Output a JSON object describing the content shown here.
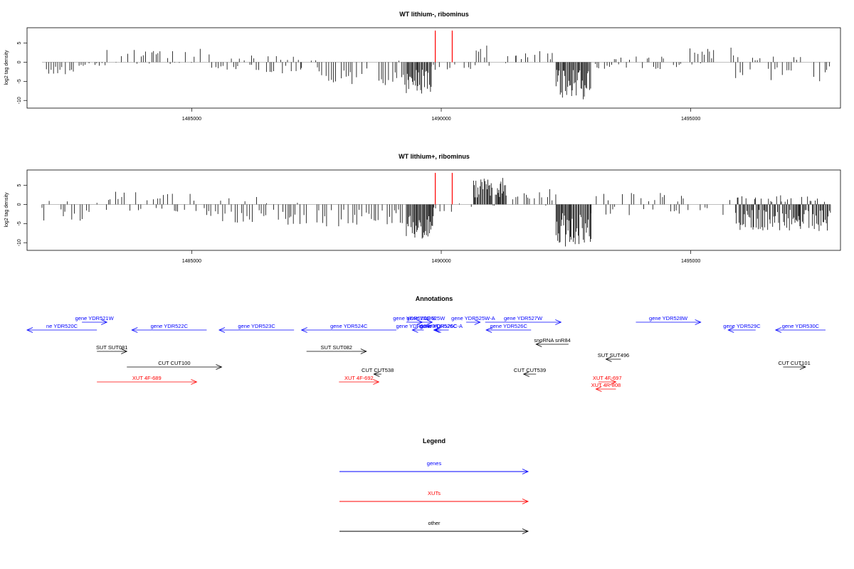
{
  "chart_data": [
    {
      "type": "bar",
      "title": "WT lithium-, ribominus",
      "ylabel": "log2 tag density",
      "xlim": [
        1481700,
        1498000
      ],
      "ylim": [
        -12,
        9
      ],
      "x_ticks": [
        1485000,
        1490000,
        1495000
      ],
      "y_ticks": [
        5,
        0,
        -5,
        -10
      ],
      "markers": [
        1489880,
        1490220
      ],
      "marker_color": "#ff0000",
      "profile": [
        {
          "from": 1482000,
          "to": 1482700,
          "lo": -4,
          "hi": 0
        },
        {
          "from": 1482700,
          "to": 1483300,
          "lo": -1,
          "hi": 0
        },
        {
          "from": 1483300,
          "to": 1485400,
          "lo": -0.5,
          "hi": 3.5
        },
        {
          "from": 1485400,
          "to": 1486200,
          "lo": -2,
          "hi": 1
        },
        {
          "from": 1486200,
          "to": 1487200,
          "lo": -3,
          "hi": 2
        },
        {
          "from": 1487200,
          "to": 1489300,
          "lo": -6,
          "hi": 0.5
        },
        {
          "from": 1489300,
          "to": 1489800,
          "lo": -8.5,
          "hi": 0
        },
        {
          "from": 1489800,
          "to": 1490700,
          "lo": -2,
          "hi": 0
        },
        {
          "from": 1490700,
          "to": 1491500,
          "lo": -1,
          "hi": 4.5
        },
        {
          "from": 1491500,
          "to": 1492300,
          "lo": -1,
          "hi": 3
        },
        {
          "from": 1492300,
          "to": 1493000,
          "lo": -10,
          "hi": 0
        },
        {
          "from": 1493000,
          "to": 1494800,
          "lo": -2,
          "hi": 1.5
        },
        {
          "from": 1494800,
          "to": 1495900,
          "lo": -1,
          "hi": 4
        },
        {
          "from": 1495900,
          "to": 1497800,
          "lo": -5,
          "hi": 1.5
        }
      ]
    },
    {
      "type": "bar",
      "title": "WT lithium+, ribominus",
      "ylabel": "log2 tag density",
      "xlim": [
        1481700,
        1498000
      ],
      "ylim": [
        -12,
        9
      ],
      "x_ticks": [
        1485000,
        1490000,
        1495000
      ],
      "y_ticks": [
        5,
        0,
        -5,
        -10
      ],
      "markers": [
        1489880,
        1490220
      ],
      "marker_color": "#ff0000",
      "profile": [
        {
          "from": 1482000,
          "to": 1482900,
          "lo": -4.5,
          "hi": 1
        },
        {
          "from": 1482900,
          "to": 1483300,
          "lo": -2,
          "hi": 0.5
        },
        {
          "from": 1483300,
          "to": 1485300,
          "lo": -2,
          "hi": 3.5
        },
        {
          "from": 1485300,
          "to": 1486500,
          "lo": -5,
          "hi": 2
        },
        {
          "from": 1486500,
          "to": 1489300,
          "lo": -6,
          "hi": 0.5
        },
        {
          "from": 1489300,
          "to": 1489850,
          "lo": -9.5,
          "hi": 0
        },
        {
          "from": 1489850,
          "to": 1490650,
          "lo": -2,
          "hi": 0.5
        },
        {
          "from": 1490650,
          "to": 1491300,
          "lo": -0.5,
          "hi": 7
        },
        {
          "from": 1491300,
          "to": 1492300,
          "lo": -0.5,
          "hi": 4
        },
        {
          "from": 1492300,
          "to": 1493000,
          "lo": -11,
          "hi": 0
        },
        {
          "from": 1493000,
          "to": 1495900,
          "lo": -3,
          "hi": 3
        },
        {
          "from": 1495900,
          "to": 1497800,
          "lo": -7,
          "hi": 2.5
        }
      ]
    }
  ],
  "annotations": {
    "title": "Annotations",
    "xlim": [
      1481700,
      1498000
    ],
    "features": [
      {
        "label": "ne YDR520C",
        "kind": "gene",
        "start": 1481700,
        "end": 1483100,
        "strand": "-",
        "level": 1
      },
      {
        "label": "gene YDR521W",
        "kind": "gene",
        "start": 1482800,
        "end": 1483300,
        "strand": "+",
        "level": 0
      },
      {
        "label": "gene YDR522C",
        "kind": "gene",
        "start": 1483800,
        "end": 1485300,
        "strand": "-",
        "level": 1
      },
      {
        "label": "gene YDR523C",
        "kind": "gene",
        "start": 1485550,
        "end": 1487050,
        "strand": "-",
        "level": 1
      },
      {
        "label": "gene YDR524C",
        "kind": "gene",
        "start": 1487200,
        "end": 1489100,
        "strand": "-",
        "level": 1
      },
      {
        "label": "gene YDR524C-B",
        "kind": "gene",
        "start": 1489300,
        "end": 1489620,
        "strand": "+",
        "level": 0
      },
      {
        "label": "gene YDR525W",
        "kind": "gene",
        "start": 1489560,
        "end": 1489820,
        "strand": "+",
        "level": 0
      },
      {
        "label": "gene YDR525W-A",
        "kind": "gene",
        "start": 1490500,
        "end": 1490780,
        "strand": "+",
        "level": 0
      },
      {
        "label": "gene YDR524W-C",
        "kind": "gene",
        "start": 1489420,
        "end": 1489650,
        "strand": "-",
        "level": 1
      },
      {
        "label": "gene YDR526C",
        "kind": "gene",
        "start": 1489880,
        "end": 1490000,
        "strand": "-",
        "level": 1
      },
      {
        "label": "gene YDR526C-A",
        "kind": "gene",
        "start": 1489850,
        "end": 1490150,
        "strand": "-",
        "level": 1
      },
      {
        "label": "gene YDR527W",
        "kind": "gene",
        "start": 1490880,
        "end": 1492400,
        "strand": "+",
        "level": 0
      },
      {
        "label": "gene YDR526C",
        "kind": "gene",
        "start": 1490900,
        "end": 1491800,
        "strand": "-",
        "level": 1
      },
      {
        "label": "gene YDR528W",
        "kind": "gene",
        "start": 1493900,
        "end": 1495200,
        "strand": "+",
        "level": 0
      },
      {
        "label": "gene YDR529C",
        "kind": "gene",
        "start": 1495750,
        "end": 1496300,
        "strand": "-",
        "level": 1
      },
      {
        "label": "gene YDR530C",
        "kind": "gene",
        "start": 1496700,
        "end": 1497700,
        "strand": "-",
        "level": 1
      },
      {
        "label": "SUT SUT081",
        "kind": "other",
        "start": 1483100,
        "end": 1483700,
        "strand": "+",
        "level": 3
      },
      {
        "label": "SUT SUT082",
        "kind": "other",
        "start": 1487300,
        "end": 1488500,
        "strand": "+",
        "level": 3
      },
      {
        "label": "snoRNA snR84",
        "kind": "other",
        "start": 1491900,
        "end": 1492550,
        "strand": "-",
        "level": 2
      },
      {
        "label": "SUT SUT496",
        "kind": "other",
        "start": 1493300,
        "end": 1493600,
        "strand": "-",
        "level": 4
      },
      {
        "label": "CUT CUT100",
        "kind": "other",
        "start": 1483700,
        "end": 1485600,
        "strand": "+",
        "level": 5
      },
      {
        "label": "CUT CUT101",
        "kind": "other",
        "start": 1496850,
        "end": 1497300,
        "strand": "+",
        "level": 5
      },
      {
        "label": "CUT CUT538",
        "kind": "other",
        "start": 1488650,
        "end": 1488800,
        "strand": "-",
        "level": 6
      },
      {
        "label": "CUT CUT539",
        "kind": "other",
        "start": 1491650,
        "end": 1491900,
        "strand": "-",
        "level": 6
      },
      {
        "label": "XUT 4F-689",
        "kind": "xut",
        "start": 1483100,
        "end": 1485100,
        "strand": "+",
        "level": 7
      },
      {
        "label": "XUT 4F-692",
        "kind": "xut",
        "start": 1487950,
        "end": 1488750,
        "strand": "+",
        "level": 7
      },
      {
        "label": "XUT 4F-697",
        "kind": "xut",
        "start": 1493150,
        "end": 1493500,
        "strand": "+",
        "level": 7
      },
      {
        "label": "XUT 4R-808",
        "kind": "xut",
        "start": 1493100,
        "end": 1493500,
        "strand": "-",
        "level": 8
      }
    ]
  },
  "legend": {
    "title": "Legend",
    "items": [
      {
        "label": "genes",
        "color": "#0000ff"
      },
      {
        "label": "XUTs",
        "color": "#ff0000"
      },
      {
        "label": "other",
        "color": "#000000"
      }
    ]
  },
  "colors": {
    "gene": "#0000ff",
    "xut": "#ff0000",
    "other": "#000000",
    "baseline": "#999999"
  }
}
